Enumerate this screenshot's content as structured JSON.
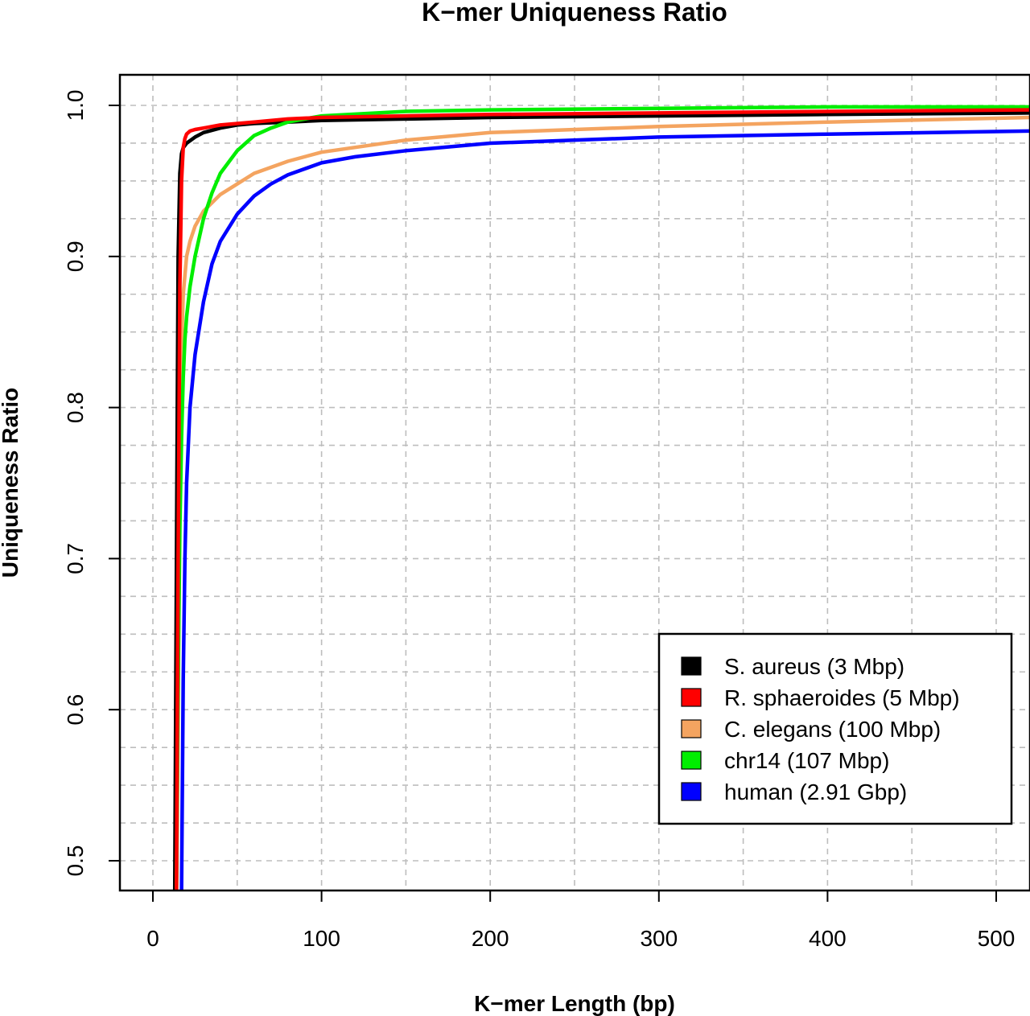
{
  "chart_data": {
    "type": "line",
    "title": "K−mer Uniqueness Ratio",
    "xlabel": "K−mer Length (bp)",
    "ylabel": "Uniqueness Ratio",
    "xlim": [
      -20,
      520
    ],
    "ylim": [
      0.48,
      1.02
    ],
    "x_ticks": [
      0,
      100,
      200,
      300,
      400,
      500
    ],
    "x_tick_labels": [
      "0",
      "100",
      "200",
      "300",
      "400",
      "500"
    ],
    "y_ticks": [
      0.5,
      0.6,
      0.7,
      0.8,
      0.9,
      1.0
    ],
    "y_tick_labels": [
      "0.5",
      "0.6",
      "0.7",
      "0.8",
      "0.9",
      "1.0"
    ],
    "grid_x_minor": [
      50,
      150,
      250,
      350,
      450
    ],
    "grid_y_minor": [
      0.525,
      0.55,
      0.575,
      0.625,
      0.65,
      0.675,
      0.725,
      0.75,
      0.775,
      0.825,
      0.85,
      0.875,
      0.925,
      0.95,
      0.975
    ],
    "grid": true,
    "legend_position": "bottom-right",
    "series": [
      {
        "name": "S. aureus (3 Mbp)",
        "color": "#000000",
        "x": [
          13,
          14,
          15,
          16,
          17,
          18,
          20,
          25,
          30,
          40,
          50,
          60,
          80,
          100,
          150,
          200,
          300,
          400,
          520
        ],
        "y": [
          0.48,
          0.7,
          0.9,
          0.955,
          0.968,
          0.972,
          0.975,
          0.979,
          0.982,
          0.985,
          0.987,
          0.988,
          0.989,
          0.99,
          0.991,
          0.992,
          0.993,
          0.994,
          0.995
        ]
      },
      {
        "name": "R. sphaeroides (5 Mbp)",
        "color": "#ff0000",
        "x": [
          14,
          15,
          16,
          17,
          18,
          19,
          20,
          22,
          25,
          30,
          40,
          60,
          80,
          100,
          150,
          200,
          300,
          400,
          520
        ],
        "y": [
          0.48,
          0.7,
          0.88,
          0.95,
          0.972,
          0.978,
          0.981,
          0.983,
          0.984,
          0.985,
          0.987,
          0.989,
          0.991,
          0.992,
          0.993,
          0.994,
          0.995,
          0.996,
          0.997
        ]
      },
      {
        "name": "C. elegans (100 Mbp)",
        "color": "#f4a460",
        "x": [
          14,
          15,
          16,
          17,
          18,
          20,
          22,
          25,
          30,
          40,
          50,
          60,
          80,
          100,
          150,
          200,
          300,
          400,
          520
        ],
        "y": [
          0.48,
          0.6,
          0.75,
          0.84,
          0.875,
          0.9,
          0.91,
          0.92,
          0.93,
          0.941,
          0.948,
          0.955,
          0.963,
          0.969,
          0.977,
          0.982,
          0.986,
          0.989,
          0.992
        ]
      },
      {
        "name": "chr14 (107 Mbp)",
        "color": "#00ee00",
        "x": [
          14,
          15,
          16,
          17,
          18,
          19,
          20,
          22,
          25,
          30,
          35,
          40,
          50,
          60,
          70,
          80,
          100,
          150,
          200,
          300,
          400,
          520
        ],
        "y": [
          0.48,
          0.62,
          0.72,
          0.78,
          0.82,
          0.845,
          0.86,
          0.88,
          0.9,
          0.925,
          0.942,
          0.955,
          0.97,
          0.98,
          0.985,
          0.989,
          0.993,
          0.996,
          0.997,
          0.998,
          0.999,
          0.999
        ]
      },
      {
        "name": "human (2.91 Gbp)",
        "color": "#0000ff",
        "x": [
          17,
          18,
          19,
          20,
          22,
          25,
          30,
          35,
          40,
          50,
          60,
          70,
          80,
          100,
          120,
          150,
          200,
          300,
          400,
          520
        ],
        "y": [
          0.48,
          0.62,
          0.7,
          0.75,
          0.8,
          0.835,
          0.87,
          0.895,
          0.91,
          0.928,
          0.94,
          0.948,
          0.954,
          0.962,
          0.966,
          0.97,
          0.975,
          0.979,
          0.981,
          0.983
        ]
      }
    ]
  }
}
